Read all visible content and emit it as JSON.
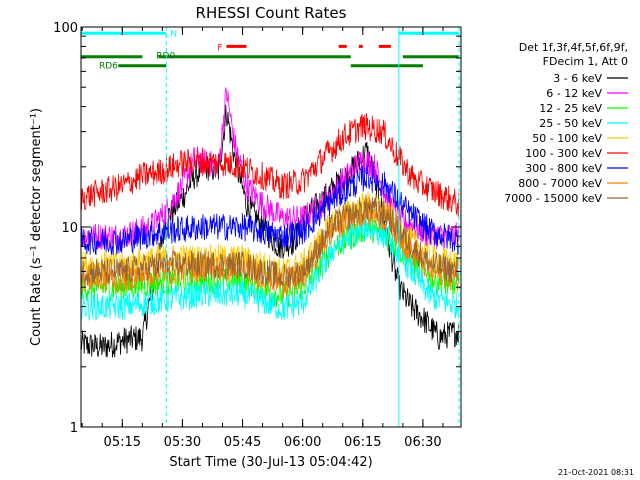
{
  "chart_data": {
    "type": "line",
    "title": "RHESSI Count Rates",
    "xlabel": "Start Time (30-Jul-13 05:04:42)",
    "ylabel": "Count Rate (s⁻¹ detector segment⁻¹)",
    "y_scale": "log",
    "ylim": [
      1,
      100
    ],
    "x_unit": "time (HH:MM UT)",
    "xlim": [
      "05:04:42",
      "06:39:30"
    ],
    "x_ticks": [
      "05:15",
      "05:30",
      "05:45",
      "06:00",
      "06:15",
      "06:30"
    ],
    "y_ticks": [
      "1",
      "10",
      "100"
    ],
    "timestamp": "21-Oct-2021 08:31",
    "legend": {
      "placement": "right",
      "header": [
        "Det 1f,3f,4f,5f,6f,9f,",
        "FDecim 1, Att 0"
      ],
      "entries": [
        {
          "label": "3 - 6 keV",
          "color": "#000000"
        },
        {
          "label": "6 - 12 keV",
          "color": "#ff00ff"
        },
        {
          "label": "12 - 25 keV",
          "color": "#00ff00"
        },
        {
          "label": "25 - 50 keV",
          "color": "#00ffff"
        },
        {
          "label": "50 - 100 keV",
          "color": "#ffcc00"
        },
        {
          "label": "100 - 300 keV",
          "color": "#ff0000"
        },
        {
          "label": "300 - 800 keV",
          "color": "#0000ff"
        },
        {
          "label": "800 - 7000 keV",
          "color": "#ff8000"
        },
        {
          "label": "7000 - 15000 keV",
          "color": "#996633"
        }
      ]
    },
    "series": [
      {
        "name": "3 - 6 keV",
        "color": "#000000",
        "x": [
          "05:04:42",
          "05:10",
          "05:15",
          "05:20",
          "05:23",
          "05:26",
          "05:30",
          "05:33",
          "05:36",
          "05:39",
          "05:41",
          "05:43",
          "05:46",
          "05:50",
          "05:54",
          "05:58",
          "06:00",
          "06:04",
          "06:08",
          "06:12",
          "06:16",
          "06:18",
          "06:21",
          "06:24",
          "06:27",
          "06:30",
          "06:34",
          "06:39"
        ],
        "y": [
          2.6,
          2.5,
          2.7,
          2.8,
          5.5,
          11,
          14,
          18,
          20,
          19,
          38,
          22,
          13,
          10,
          8,
          8.5,
          11,
          13,
          16,
          19,
          24,
          18,
          9,
          5,
          4,
          3.5,
          2.8,
          3.0
        ]
      },
      {
        "name": "6 - 12 keV",
        "color": "#ff00ff",
        "x": [
          "05:04:42",
          "05:15",
          "05:22",
          "05:26",
          "05:30",
          "05:33",
          "05:36",
          "05:39",
          "05:41",
          "05:43",
          "05:46",
          "05:50",
          "05:55",
          "06:00",
          "06:05",
          "06:10",
          "06:15",
          "06:18",
          "06:21",
          "06:24",
          "06:28",
          "06:32",
          "06:39"
        ],
        "y": [
          9,
          9,
          10,
          12,
          16,
          22,
          21,
          20,
          48,
          26,
          16,
          13,
          11,
          11,
          13,
          17,
          22,
          20,
          14,
          11,
          10,
          9,
          9
        ]
      },
      {
        "name": "12 - 25 keV",
        "color": "#00ff00",
        "x": [
          "05:04:42",
          "05:15",
          "05:25",
          "05:35",
          "05:45",
          "05:55",
          "06:00",
          "06:08",
          "06:16",
          "06:21",
          "06:26",
          "06:32",
          "06:39"
        ],
        "y": [
          5,
          5,
          5.3,
          5.4,
          5.4,
          4.5,
          5,
          8,
          10,
          9,
          7,
          5.5,
          5
        ]
      },
      {
        "name": "25 - 50 keV",
        "color": "#00ffff",
        "x": [
          "05:04:42",
          "05:15",
          "05:25",
          "05:35",
          "05:45",
          "05:55",
          "06:00",
          "06:08",
          "06:16",
          "06:21",
          "06:26",
          "06:32",
          "06:39"
        ],
        "y": [
          4,
          4,
          4.3,
          4.6,
          4.6,
          3.9,
          4.2,
          8,
          10,
          9,
          6.5,
          4.5,
          4
        ]
      },
      {
        "name": "50 - 100 keV",
        "color": "#ffcc00",
        "x": [
          "05:04:42",
          "05:15",
          "05:25",
          "05:35",
          "05:45",
          "05:55",
          "06:00",
          "06:08",
          "06:16",
          "06:21",
          "06:26",
          "06:32",
          "06:39"
        ],
        "y": [
          6.5,
          6.5,
          7,
          7,
          7,
          6,
          6.5,
          11,
          13,
          12,
          9,
          7,
          6.5
        ]
      },
      {
        "name": "100 - 300 keV",
        "color": "#ff0000",
        "x": [
          "05:04:42",
          "05:10",
          "05:15",
          "05:20",
          "05:25",
          "05:30",
          "05:35",
          "05:40",
          "05:45",
          "05:50",
          "05:55",
          "06:00",
          "06:05",
          "06:10",
          "06:15",
          "06:20",
          "06:24",
          "06:28",
          "06:33",
          "06:39"
        ],
        "y": [
          14,
          15,
          16,
          18,
          19,
          21,
          21,
          21,
          20,
          18,
          16,
          17,
          22,
          28,
          32,
          30,
          22,
          17,
          15,
          13
        ]
      },
      {
        "name": "300 - 800 keV",
        "color": "#0000ff",
        "x": [
          "05:04:42",
          "05:15",
          "05:25",
          "05:35",
          "05:45",
          "05:55",
          "06:00",
          "06:08",
          "06:16",
          "06:21",
          "06:26",
          "06:32",
          "06:39"
        ],
        "y": [
          8.5,
          8.5,
          9.5,
          10,
          10,
          9,
          9.5,
          14,
          18,
          16,
          12,
          9.5,
          8.5
        ]
      },
      {
        "name": "800 - 7000 keV",
        "color": "#ff8000",
        "x": [
          "05:04:42",
          "05:15",
          "05:25",
          "05:35",
          "05:45",
          "05:55",
          "06:00",
          "06:08",
          "06:16",
          "06:21",
          "06:26",
          "06:32",
          "06:39"
        ],
        "y": [
          5.5,
          5.5,
          6,
          6.2,
          6.2,
          5.2,
          5.6,
          10,
          12,
          11,
          8,
          6,
          5.5
        ]
      },
      {
        "name": "7000 - 15000 keV",
        "color": "#996633",
        "x": [
          "05:04:42",
          "05:15",
          "05:25",
          "05:35",
          "05:45",
          "05:55",
          "06:00",
          "06:08",
          "06:16",
          "06:21",
          "06:26",
          "06:32",
          "06:39"
        ],
        "y": [
          6,
          6,
          6.5,
          6.5,
          6.5,
          5.6,
          6,
          10.5,
          12.5,
          11.5,
          8.5,
          6.5,
          6
        ]
      }
    ],
    "annotations": [
      {
        "text": "N",
        "color": "#00ffff",
        "intervals": [
          [
            "05:04:42",
            "05:26"
          ],
          [
            "06:24",
            "06:39:00"
          ]
        ],
        "level": 93
      },
      {
        "text": "F",
        "color": "#ff0000",
        "intervals": [
          [
            "05:41",
            "05:46"
          ],
          [
            "06:09",
            "06:11"
          ],
          [
            "06:14",
            "06:15"
          ],
          [
            "06:19",
            "06:22"
          ]
        ],
        "level": 80
      },
      {
        "text": "RD6",
        "color": "#008000",
        "intervals": [
          [
            "05:04:42",
            "05:20"
          ],
          [
            "05:24",
            "06:12"
          ],
          [
            "06:25",
            "06:39"
          ]
        ],
        "level": 71
      },
      {
        "text": "RD0",
        "color": "#008000",
        "intervals": [
          [
            "05:14",
            "05:26"
          ],
          [
            "06:12",
            "06:30"
          ]
        ],
        "level": 64
      }
    ],
    "vertical_markers": [
      {
        "time": "05:26",
        "color": "#00ffff",
        "style": "dashed"
      },
      {
        "time": "06:24",
        "color": "#00ffff",
        "style": "solid"
      },
      {
        "time": "06:39",
        "color": "#00ffff",
        "style": "dashed"
      }
    ]
  }
}
